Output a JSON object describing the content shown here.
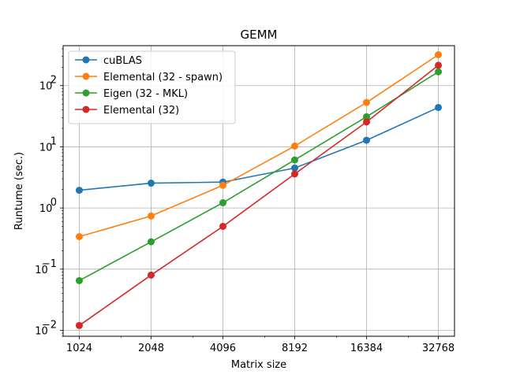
{
  "chart_data": {
    "type": "line",
    "title": "GEMM",
    "xlabel": "Matrix size",
    "ylabel": "Runtume (sec.)",
    "x": [
      1024,
      2048,
      4096,
      8192,
      16384,
      32768
    ],
    "x_tick_labels": [
      "1024",
      "2048",
      "4096",
      "8192",
      "16384",
      "32768"
    ],
    "x_scale": "log2",
    "y_scale": "log10",
    "ylim": [
      0.008,
      450
    ],
    "y_ticks": [
      0.01,
      0.1,
      1,
      10,
      100
    ],
    "y_tick_labels": [
      {
        "base": "10",
        "exp": "−2"
      },
      {
        "base": "10",
        "exp": "−1"
      },
      {
        "base": "10",
        "exp": "0"
      },
      {
        "base": "10",
        "exp": "1"
      },
      {
        "base": "10",
        "exp": "2"
      }
    ],
    "grid": true,
    "legend_position": "top-left",
    "series": [
      {
        "name": "cuBLAS",
        "color": "#1f77b4",
        "values": [
          1.95,
          2.55,
          2.65,
          4.5,
          12.8,
          44
        ]
      },
      {
        "name": "Elemental (32 - spawn)",
        "color": "#ff7f0e",
        "values": [
          0.34,
          0.74,
          2.35,
          10.3,
          53,
          320
        ]
      },
      {
        "name": "Eigen (32 - MKL)",
        "color": "#2ca02c",
        "values": [
          0.065,
          0.28,
          1.22,
          6.1,
          31,
          168
        ]
      },
      {
        "name": "Elemental (32)",
        "color": "#d62728",
        "values": [
          0.012,
          0.08,
          0.5,
          3.6,
          25.5,
          215
        ]
      }
    ]
  }
}
